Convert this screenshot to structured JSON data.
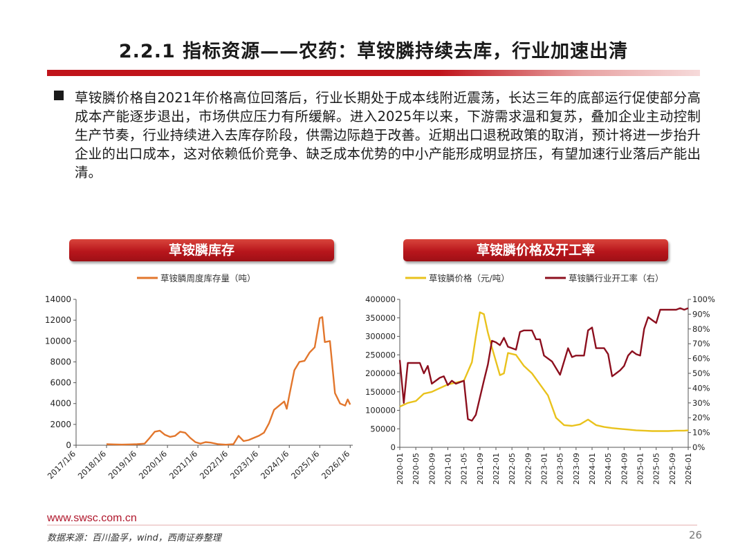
{
  "header": {
    "title": "2.2.1 指标资源——农药：草铵膦持续去库，行业加速出清"
  },
  "body": {
    "bullet_text": "草铵膦价格自2021年价格高位回落后，行业长期处于成本线附近震荡，长达三年的底部运行促使部分高成本产能逐步退出，市场供应压力有所缓解。进入2025年以来，下游需求温和复苏，叠加企业主动控制生产节奏，行业持续进入去库存阶段，供需边际趋于改善。近期出口退税政策的取消，预计将进一步抬升企业的出口成本，这对依赖低价竞争、缺乏成本优势的中小产能形成明显挤压，有望加速行业落后产能出清。"
  },
  "chart_left": {
    "header": "草铵膦库存"
  },
  "chart_right": {
    "header": "草铵膦价格及开工率"
  },
  "chart_data": [
    {
      "type": "line",
      "title": "草铵膦库存",
      "series": [
        {
          "name": "草铵膦周度库存量（吨）",
          "color": "#e2762c",
          "x": [
            "2018-01",
            "2018-04",
            "2018-07",
            "2018-10",
            "2019-01",
            "2019-04",
            "2019-06",
            "2019-08",
            "2019-10",
            "2019-12",
            "2020-02",
            "2020-04",
            "2020-06",
            "2020-08",
            "2020-10",
            "2020-12",
            "2021-02",
            "2021-04",
            "2021-06",
            "2021-09",
            "2021-12",
            "2022-03",
            "2022-05",
            "2022-07",
            "2022-09",
            "2022-11",
            "2023-01",
            "2023-03",
            "2023-05",
            "2023-07",
            "2023-09",
            "2023-11",
            "2023-12",
            "2024-01",
            "2024-03",
            "2024-05",
            "2024-07",
            "2024-09",
            "2024-11",
            "2025-01",
            "2025-02",
            "2025-03",
            "2025-05",
            "2025-07",
            "2025-09",
            "2025-11",
            "2025-12",
            "2026-01"
          ],
          "values": [
            100,
            80,
            60,
            80,
            100,
            150,
            700,
            1300,
            1400,
            1000,
            800,
            900,
            1300,
            1200,
            700,
            300,
            150,
            300,
            250,
            100,
            50,
            100,
            900,
            400,
            500,
            700,
            900,
            1200,
            2100,
            3400,
            3800,
            4200,
            3500,
            4800,
            7200,
            8000,
            8100,
            8900,
            9400,
            12200,
            12300,
            9900,
            10000,
            5000,
            4000,
            3800,
            4400,
            3900
          ]
        }
      ],
      "x_tick_labels": [
        "2017/1/6",
        "2018/1/6",
        "2019/1/6",
        "2020/1/6",
        "2021/1/6",
        "2022/1/6",
        "2023/1/6",
        "2024/1/6",
        "2025/1/6",
        "2026/1/6"
      ],
      "y_tick_labels": [
        "0",
        "2000",
        "4000",
        "6000",
        "8000",
        "10000",
        "12000",
        "14000"
      ],
      "ylim": [
        0,
        14000
      ],
      "legend_position": "top"
    },
    {
      "type": "line",
      "title": "草铵膦价格及开工率",
      "series": [
        {
          "name": "草铵膦价格（元/吨）",
          "axis": "left",
          "color": "#e9c21c",
          "x": [
            "2020-01",
            "2020-03",
            "2020-05",
            "2020-07",
            "2020-09",
            "2020-11",
            "2021-01",
            "2021-03",
            "2021-05",
            "2021-07",
            "2021-08",
            "2021-09",
            "2021-10",
            "2021-11",
            "2021-12",
            "2022-02",
            "2022-03",
            "2022-04",
            "2022-06",
            "2022-08",
            "2022-10",
            "2022-12",
            "2023-02",
            "2023-04",
            "2023-06",
            "2023-08",
            "2023-10",
            "2023-12",
            "2024-02",
            "2024-04",
            "2024-06",
            "2024-08",
            "2024-10",
            "2024-12",
            "2025-02",
            "2025-04",
            "2025-06",
            "2025-08",
            "2025-10",
            "2025-12",
            "2026-01"
          ],
          "values": [
            110000,
            120000,
            125000,
            145000,
            150000,
            160000,
            170000,
            175000,
            180000,
            230000,
            300000,
            365000,
            360000,
            310000,
            270000,
            195000,
            200000,
            255000,
            250000,
            220000,
            200000,
            170000,
            140000,
            80000,
            60000,
            58000,
            62000,
            75000,
            60000,
            55000,
            52000,
            50000,
            48000,
            46000,
            45000,
            44000,
            44000,
            44000,
            45000,
            45000,
            46000
          ]
        },
        {
          "name": "草铵膦行业开工率（右）",
          "axis": "right",
          "color": "#8c0f1e",
          "x": [
            "2020-01",
            "2020-02",
            "2020-03",
            "2020-04",
            "2020-06",
            "2020-07",
            "2020-08",
            "2020-09",
            "2020-11",
            "2020-12",
            "2021-01",
            "2021-02",
            "2021-03",
            "2021-05",
            "2021-06",
            "2021-07",
            "2021-08",
            "2021-10",
            "2021-11",
            "2021-12",
            "2022-01",
            "2022-02",
            "2022-03",
            "2022-04",
            "2022-06",
            "2022-07",
            "2022-08",
            "2022-10",
            "2022-11",
            "2022-12",
            "2023-01",
            "2023-03",
            "2023-05",
            "2023-07",
            "2023-08",
            "2023-09",
            "2023-11",
            "2023-12",
            "2024-01",
            "2024-02",
            "2024-03",
            "2024-04",
            "2024-05",
            "2024-06",
            "2024-07",
            "2024-08",
            "2024-09",
            "2024-10",
            "2024-11",
            "2024-12",
            "2025-01",
            "2025-02",
            "2025-03",
            "2025-04",
            "2025-05",
            "2025-06",
            "2025-07",
            "2025-08",
            "2025-09",
            "2025-10",
            "2025-11",
            "2025-12",
            "2026-01"
          ],
          "values": [
            0.59,
            0.3,
            0.57,
            0.57,
            0.57,
            0.5,
            0.55,
            0.43,
            0.47,
            0.48,
            0.42,
            0.45,
            0.43,
            0.45,
            0.19,
            0.18,
            0.22,
            0.45,
            0.56,
            0.72,
            0.71,
            0.69,
            0.74,
            0.68,
            0.66,
            0.78,
            0.79,
            0.79,
            0.73,
            0.73,
            0.62,
            0.58,
            0.49,
            0.67,
            0.61,
            0.62,
            0.62,
            0.79,
            0.81,
            0.67,
            0.67,
            0.67,
            0.63,
            0.48,
            0.5,
            0.52,
            0.55,
            0.62,
            0.65,
            0.63,
            0.62,
            0.8,
            0.88,
            0.86,
            0.84,
            0.93,
            0.93,
            0.93,
            0.93,
            0.93,
            0.94,
            0.93,
            0.94
          ]
        }
      ],
      "x_tick_labels": [
        "2020-01",
        "2020-05",
        "2020-09",
        "2021-01",
        "2021-05",
        "2021-09",
        "2022-01",
        "2022-05",
        "2022-09",
        "2023-01",
        "2023-05",
        "2023-09",
        "2024-01",
        "2024-05",
        "2024-09",
        "2025-01",
        "2025-05",
        "2025-09",
        "2026-01"
      ],
      "y_left_tick_labels": [
        "0",
        "50000",
        "100000",
        "150000",
        "200000",
        "250000",
        "300000",
        "350000",
        "400000"
      ],
      "y_right_tick_labels": [
        "0%",
        "10%",
        "20%",
        "30%",
        "40%",
        "50%",
        "60%",
        "70%",
        "80%",
        "90%",
        "100%"
      ],
      "ylim_left": [
        0,
        400000
      ],
      "ylim_right": [
        0,
        1
      ],
      "legend_position": "top"
    }
  ],
  "footer": {
    "url": "www.swsc.com.cn",
    "source": "数据来源：百川盈孚，wind，西南证券整理",
    "page_number": "26"
  }
}
